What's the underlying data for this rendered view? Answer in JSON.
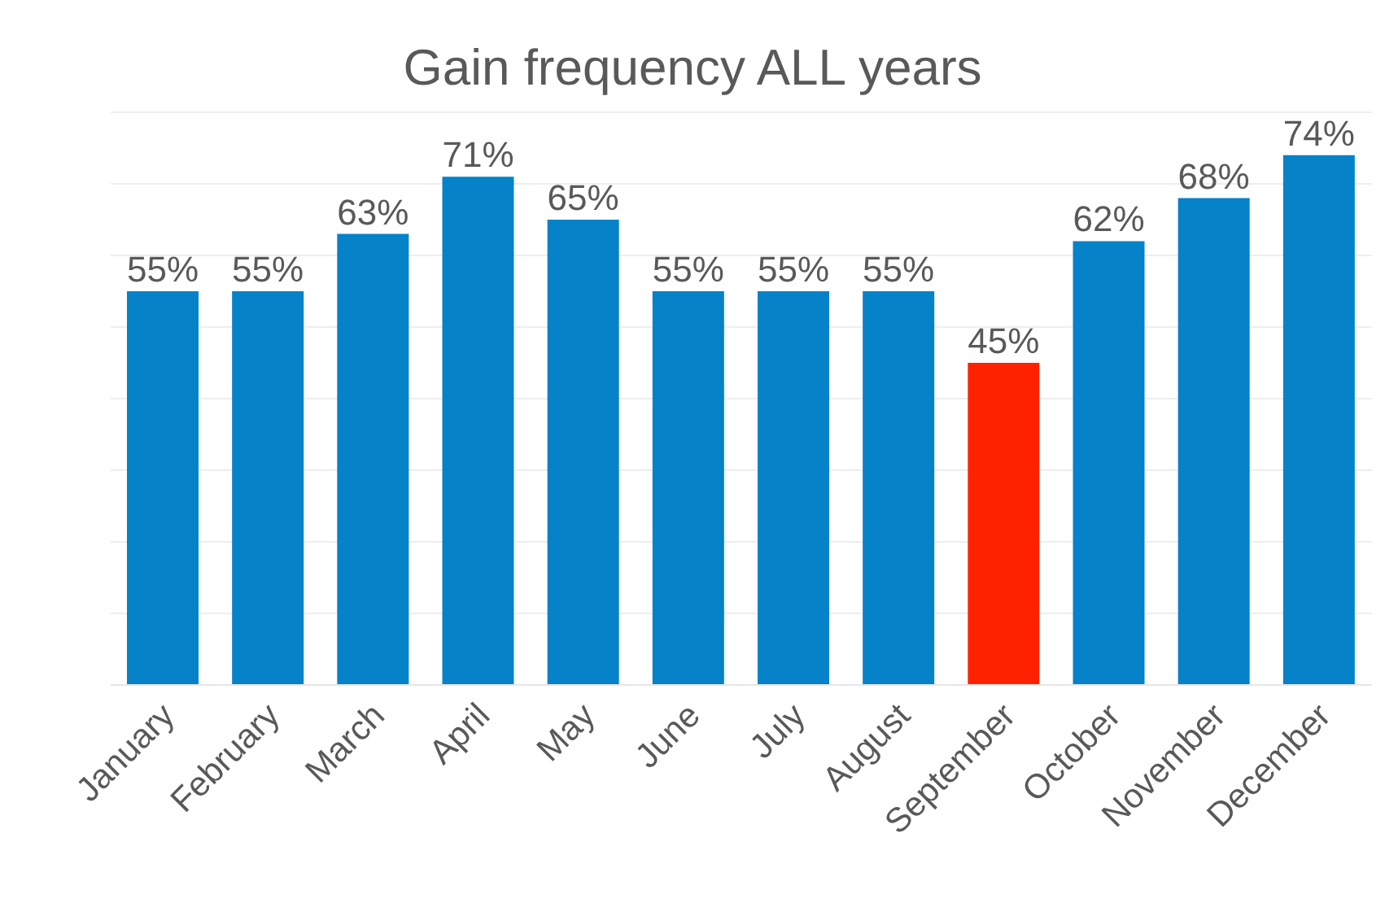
{
  "chart_data": {
    "type": "bar",
    "title": "Gain frequency ALL years",
    "categories": [
      "January",
      "February",
      "March",
      "April",
      "May",
      "June",
      "July",
      "August",
      "September",
      "October",
      "November",
      "December"
    ],
    "values": [
      55,
      55,
      63,
      71,
      65,
      55,
      55,
      55,
      45,
      62,
      68,
      74
    ],
    "value_labels": [
      "55%",
      "55%",
      "63%",
      "71%",
      "65%",
      "55%",
      "55%",
      "55%",
      "45%",
      "62%",
      "68%",
      "74%"
    ],
    "colors": [
      "#0682c8",
      "#0682c8",
      "#0682c8",
      "#0682c8",
      "#0682c8",
      "#0682c8",
      "#0682c8",
      "#0682c8",
      "#ff2200",
      "#0682c8",
      "#0682c8",
      "#0682c8"
    ],
    "ylim": [
      0,
      80
    ],
    "yticks": [
      0,
      10,
      20,
      30,
      40,
      50,
      60,
      70,
      80
    ],
    "grid": "y",
    "tick_labels": "x"
  }
}
